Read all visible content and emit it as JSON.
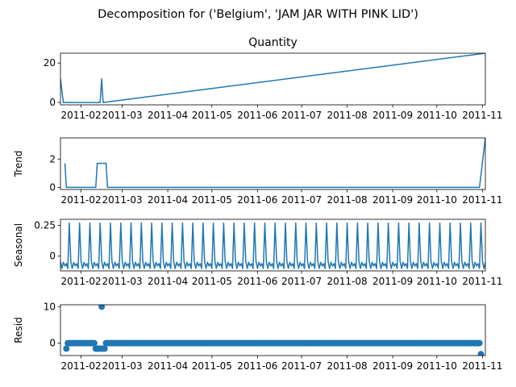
{
  "figure": {
    "suptitle": "Decomposition for ('Belgium', 'JAM JAR WITH PINK LID')",
    "line_color": "#1f77b4"
  },
  "x_axis": {
    "tick_labels": [
      "2011-02",
      "2011-03",
      "2011-04",
      "2011-05",
      "2011-06",
      "2011-07",
      "2011-08",
      "2011-09",
      "2011-10",
      "2011-11"
    ],
    "tick_days": [
      14,
      42,
      73,
      103,
      134,
      164,
      195,
      226,
      256,
      287
    ],
    "xlim_days": [
      0,
      289
    ]
  },
  "chart_data": [
    {
      "type": "line",
      "title": "Quantity",
      "ylabel": "",
      "ylim": [
        -1.2,
        25
      ],
      "yticks": [
        0,
        20
      ],
      "x_days": [
        0,
        2,
        3,
        5,
        27,
        28,
        29,
        289
      ],
      "values": [
        12,
        0,
        0,
        0,
        0,
        12,
        0,
        25
      ],
      "grid": false
    },
    {
      "type": "line",
      "title": "",
      "ylabel": "Trend",
      "ylim": [
        -0.15,
        3.5
      ],
      "yticks": [
        0,
        2
      ],
      "x_days": [
        3,
        4,
        24,
        25,
        31,
        32,
        285,
        289
      ],
      "values": [
        1.7,
        0,
        0,
        1.7,
        1.7,
        0,
        0,
        3.5
      ],
      "grid": false
    },
    {
      "type": "line",
      "title": "",
      "ylabel": "Seasonal",
      "ylim": [
        -0.12,
        0.3
      ],
      "yticks": [
        0.25,
        0.0
      ],
      "period_days": 7,
      "pattern": [
        0.27,
        -0.04,
        -0.1,
        -0.05,
        -0.08,
        -0.06,
        -0.1
      ],
      "pattern_start_day": 6,
      "x_start_day": 0,
      "x_end_day": 289,
      "grid": false
    },
    {
      "type": "scatter",
      "title": "",
      "ylabel": "Resid",
      "ylim": [
        -3.4,
        10.5
      ],
      "yticks": [
        0,
        10
      ],
      "points": [
        {
          "x": 4,
          "y": -1.5
        },
        {
          "x": 24,
          "y": -1.5
        },
        {
          "x": 25,
          "y": -1.5
        },
        {
          "x": 26,
          "y": -1.5
        },
        {
          "x": 27,
          "y": -1.5
        },
        {
          "x": 28,
          "y": 10
        },
        {
          "x": 29,
          "y": -1.5
        },
        {
          "x": 30,
          "y": -1.5
        },
        {
          "x": 286,
          "y": -3
        }
      ],
      "baseline": {
        "y": 0,
        "from_day": 4,
        "to_day": 286
      },
      "grid": false
    }
  ]
}
